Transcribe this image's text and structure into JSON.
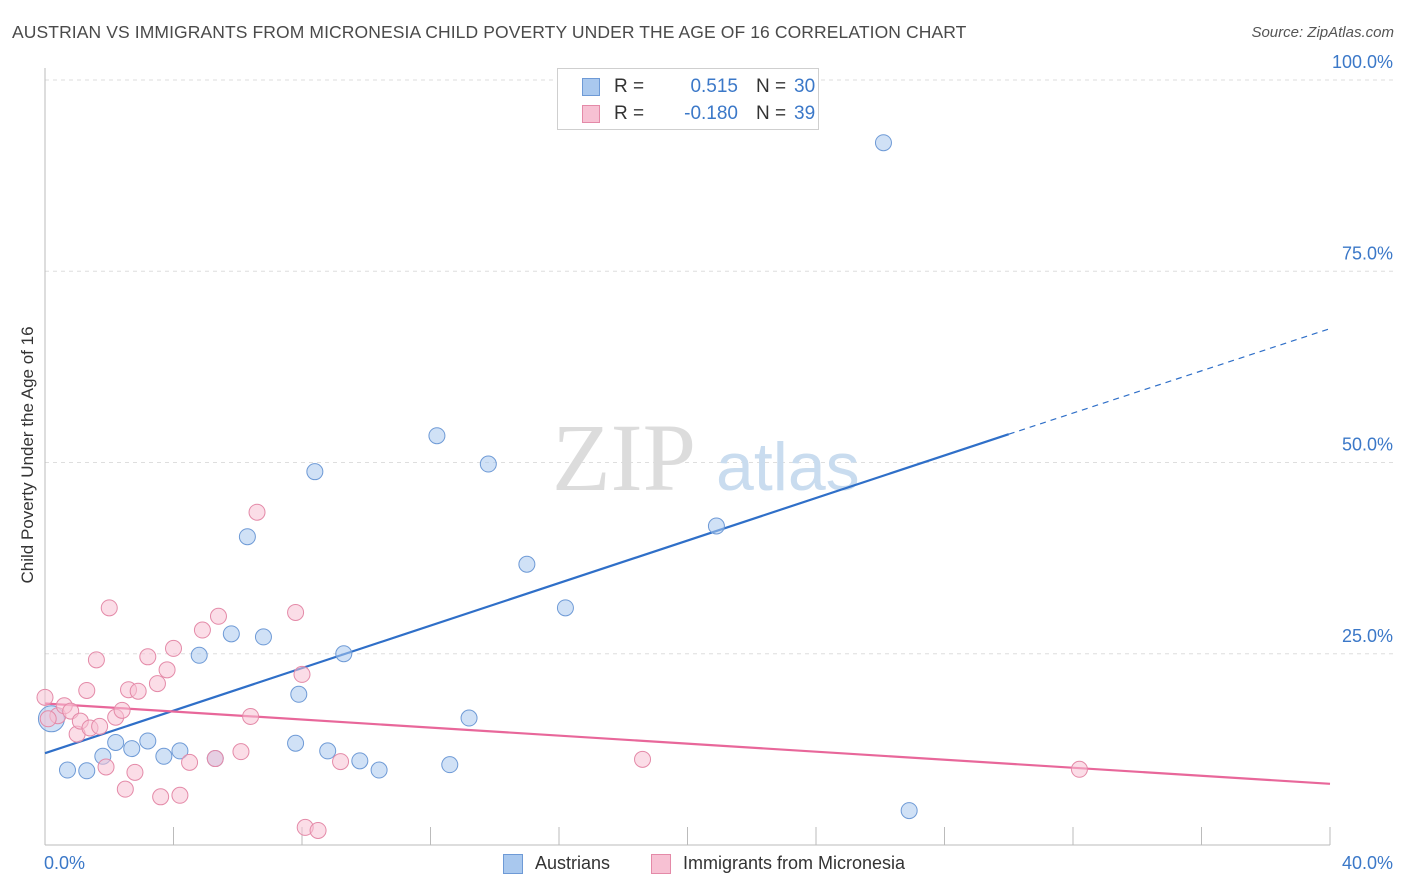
{
  "header": {
    "title": "AUSTRIAN VS IMMIGRANTS FROM MICRONESIA CHILD POVERTY UNDER THE AGE OF 16 CORRELATION CHART",
    "source": "Source: ZipAtlas.com"
  },
  "watermark": {
    "zip": "ZIP",
    "atlas": "atlas"
  },
  "legend": {
    "rows": [
      {
        "r_label": "R =",
        "r_value": "0.515",
        "n_label": "N =",
        "n_value": "30",
        "color": "#a9c8ee",
        "border": "#6e9ad6"
      },
      {
        "r_label": "R =",
        "r_value": "-0.180",
        "n_label": "N =",
        "n_value": "39",
        "color": "#f7c1d3",
        "border": "#e48aa8"
      }
    ]
  },
  "chart_data": {
    "type": "scatter",
    "title": "AUSTRIAN VS IMMIGRANTS FROM MICRONESIA CHILD POVERTY UNDER THE AGE OF 16 CORRELATION CHART",
    "xlabel": "",
    "ylabel": "Child Poverty Under the Age of 16",
    "xlim": [
      0,
      40
    ],
    "ylim": [
      0,
      100
    ],
    "x_tick_labels": {
      "min": "0.0%",
      "max": "40.0%"
    },
    "y_ticks": [
      {
        "value": 25,
        "label": "25.0%"
      },
      {
        "value": 50,
        "label": "50.0%"
      },
      {
        "value": 75,
        "label": "75.0%"
      },
      {
        "value": 100,
        "label": "100.0%"
      }
    ],
    "grid": true,
    "series": [
      {
        "name": "Austrians",
        "color": "#a9c8ee",
        "stroke": "#6e9ad6",
        "line_color": "#2f6fc8",
        "trend": {
          "x0": 0,
          "y0": 12.0,
          "x1": 30,
          "y1": 53.7,
          "extend_to_x": 40,
          "extend_to_y": 67.5
        },
        "points": [
          [
            0.2,
            16.5
          ],
          [
            0.7,
            9.8
          ],
          [
            1.3,
            9.7
          ],
          [
            1.8,
            11.6
          ],
          [
            2.2,
            13.4
          ],
          [
            2.7,
            12.6
          ],
          [
            3.2,
            13.6
          ],
          [
            3.7,
            11.6
          ],
          [
            4.2,
            12.3
          ],
          [
            4.8,
            24.8
          ],
          [
            5.3,
            11.3
          ],
          [
            5.8,
            27.6
          ],
          [
            6.3,
            40.3
          ],
          [
            6.8,
            27.2
          ],
          [
            7.8,
            13.3
          ],
          [
            7.9,
            19.7
          ],
          [
            8.4,
            48.8
          ],
          [
            8.8,
            12.3
          ],
          [
            9.3,
            25.0
          ],
          [
            9.8,
            11.0
          ],
          [
            10.4,
            9.8
          ],
          [
            12.2,
            53.5
          ],
          [
            12.6,
            10.5
          ],
          [
            13.2,
            16.6
          ],
          [
            13.8,
            49.8
          ],
          [
            15.0,
            36.7
          ],
          [
            16.2,
            31.0
          ],
          [
            20.9,
            41.7
          ],
          [
            26.1,
            91.8
          ],
          [
            26.9,
            4.5
          ]
        ]
      },
      {
        "name": "Immigrants from Micronesia",
        "color": "#f7c1d3",
        "stroke": "#e48aa8",
        "line_color": "#e8679a",
        "trend": {
          "x0": 0,
          "y0": 18.5,
          "x1": 40,
          "y1": 8.0
        },
        "points": [
          [
            0.0,
            19.3
          ],
          [
            0.4,
            16.9
          ],
          [
            0.6,
            18.2
          ],
          [
            0.8,
            17.5
          ],
          [
            1.0,
            14.5
          ],
          [
            1.1,
            16.2
          ],
          [
            1.3,
            20.2
          ],
          [
            1.4,
            15.3
          ],
          [
            1.6,
            24.2
          ],
          [
            1.7,
            15.5
          ],
          [
            1.9,
            10.2
          ],
          [
            2.0,
            31.0
          ],
          [
            2.2,
            16.7
          ],
          [
            2.4,
            17.6
          ],
          [
            2.5,
            7.3
          ],
          [
            2.6,
            20.3
          ],
          [
            2.8,
            9.5
          ],
          [
            2.9,
            20.1
          ],
          [
            3.2,
            24.6
          ],
          [
            3.5,
            21.1
          ],
          [
            3.6,
            6.3
          ],
          [
            3.8,
            22.9
          ],
          [
            4.0,
            25.7
          ],
          [
            4.2,
            6.5
          ],
          [
            4.5,
            10.8
          ],
          [
            4.9,
            28.1
          ],
          [
            5.3,
            11.3
          ],
          [
            5.4,
            29.9
          ],
          [
            6.1,
            12.2
          ],
          [
            6.4,
            16.8
          ],
          [
            6.6,
            43.5
          ],
          [
            7.8,
            30.4
          ],
          [
            8.0,
            22.3
          ],
          [
            8.1,
            2.3
          ],
          [
            8.5,
            1.9
          ],
          [
            9.2,
            10.9
          ],
          [
            18.6,
            11.2
          ],
          [
            32.2,
            9.9
          ],
          [
            0.1,
            16.5
          ]
        ]
      }
    ]
  },
  "bottom_legend": {
    "items": [
      {
        "label": "Austrians",
        "color": "#a9c8ee",
        "border": "#6e9ad6"
      },
      {
        "label": "Immigrants from Micronesia",
        "color": "#f7c1d3",
        "border": "#e48aa8"
      }
    ]
  }
}
